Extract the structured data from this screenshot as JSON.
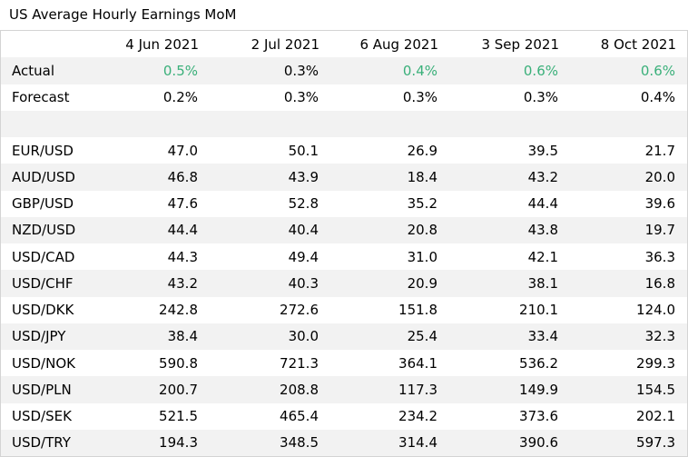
{
  "title": "US Average Hourly Earnings MoM",
  "columns": [
    "4 Jun 2021",
    "2 Jul 2021",
    "6 Aug 2021",
    "3 Sep 2021",
    "8 Oct 2021"
  ],
  "accent_positive": "#3ab07a",
  "row_shade": "#f2f2f2",
  "actual": {
    "label": "Actual",
    "values": [
      "0.5%",
      "0.3%",
      "0.4%",
      "0.6%",
      "0.6%"
    ],
    "highlighted": [
      true,
      false,
      true,
      true,
      true
    ]
  },
  "forecast": {
    "label": "Forecast",
    "values": [
      "0.2%",
      "0.3%",
      "0.3%",
      "0.3%",
      "0.4%"
    ]
  },
  "pairs": [
    {
      "label": "EUR/USD",
      "values": [
        "47.0",
        "50.1",
        "26.9",
        "39.5",
        "21.7"
      ]
    },
    {
      "label": "AUD/USD",
      "values": [
        "46.8",
        "43.9",
        "18.4",
        "43.2",
        "20.0"
      ]
    },
    {
      "label": "GBP/USD",
      "values": [
        "47.6",
        "52.8",
        "35.2",
        "44.4",
        "39.6"
      ]
    },
    {
      "label": "NZD/USD",
      "values": [
        "44.4",
        "40.4",
        "20.8",
        "43.8",
        "19.7"
      ]
    },
    {
      "label": "USD/CAD",
      "values": [
        "44.3",
        "49.4",
        "31.0",
        "42.1",
        "36.3"
      ]
    },
    {
      "label": "USD/CHF",
      "values": [
        "43.2",
        "40.3",
        "20.9",
        "38.1",
        "16.8"
      ]
    },
    {
      "label": "USD/DKK",
      "values": [
        "242.8",
        "272.6",
        "151.8",
        "210.1",
        "124.0"
      ]
    },
    {
      "label": "USD/JPY",
      "values": [
        "38.4",
        "30.0",
        "25.4",
        "33.4",
        "32.3"
      ]
    },
    {
      "label": "USD/NOK",
      "values": [
        "590.8",
        "721.3",
        "364.1",
        "536.2",
        "299.3"
      ]
    },
    {
      "label": "USD/PLN",
      "values": [
        "200.7",
        "208.8",
        "117.3",
        "149.9",
        "154.5"
      ]
    },
    {
      "label": "USD/SEK",
      "values": [
        "521.5",
        "465.4",
        "234.2",
        "373.6",
        "202.1"
      ]
    },
    {
      "label": "USD/TRY",
      "values": [
        "194.3",
        "348.5",
        "314.4",
        "390.6",
        "597.3"
      ]
    }
  ]
}
